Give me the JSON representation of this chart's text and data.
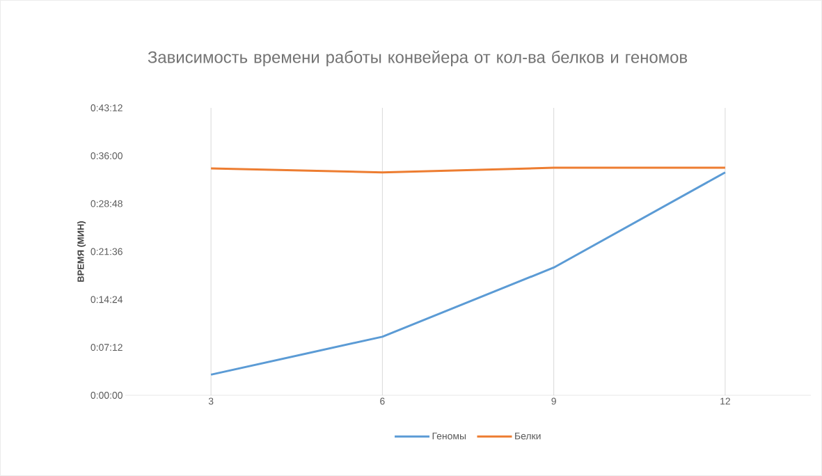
{
  "chart_data": {
    "type": "line",
    "title": "Зависимость  времени  работы  конвейера  от кол-ва белков  и  геномов",
    "ylabel": "ВРЕМЯ (МИН)",
    "categories": [
      "3",
      "6",
      "9",
      "12"
    ],
    "series": [
      {
        "name": "Геномы",
        "color": "#5b9bd5",
        "values": [
          3.1,
          8.8,
          19.2,
          33.5
        ]
      },
      {
        "name": "Белки",
        "color": "#ed7d31",
        "values": [
          34.1,
          33.5,
          34.2,
          34.2
        ]
      }
    ],
    "ylim": [
      0,
      43.2
    ],
    "yticks": [
      {
        "value": 0,
        "label": "0:00:00"
      },
      {
        "value": 7.2,
        "label": "0:07:12"
      },
      {
        "value": 14.4,
        "label": "0:14:24"
      },
      {
        "value": 21.6,
        "label": "0:21:36"
      },
      {
        "value": 28.8,
        "label": "0:28:48"
      },
      {
        "value": 36,
        "label": "0:36:00"
      },
      {
        "value": 43.2,
        "label": "0:43:12"
      }
    ],
    "grid": "x",
    "legend": "bottom",
    "marker": "none",
    "line_style": "solid"
  }
}
